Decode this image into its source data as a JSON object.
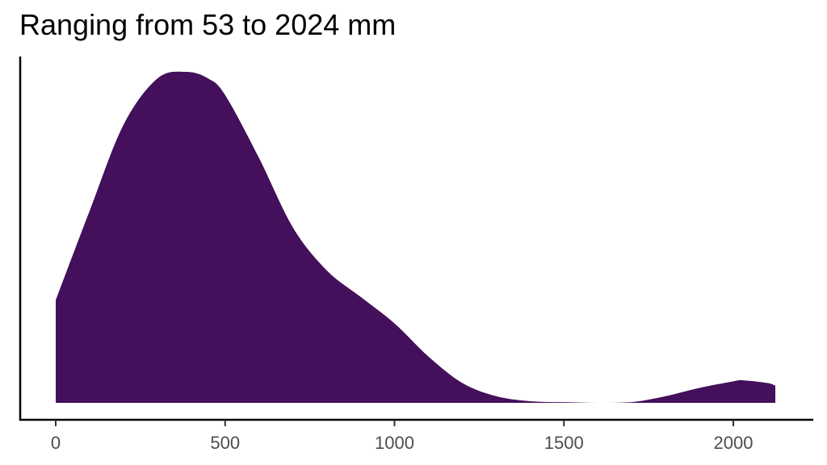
{
  "chart_data": {
    "type": "area",
    "subtype": "density",
    "title": "Ranging from 53 to 2024 mm",
    "xlabel": "",
    "ylabel": "",
    "xlim": [
      -110,
      2250
    ],
    "x_ticks": [
      0,
      500,
      1000,
      1500,
      2000
    ],
    "x_tick_labels": [
      "0",
      "500",
      "1000",
      "1500",
      "2000"
    ],
    "y_ticks": [],
    "grid": false,
    "legend": null,
    "fill_color": "#440F5B",
    "x": [
      0,
      100,
      200,
      300,
      385,
      450,
      500,
      600,
      700,
      800,
      900,
      1000,
      1100,
      1200,
      1300,
      1400,
      1500,
      1600,
      1700,
      1800,
      1900,
      2000,
      2030,
      2100,
      2124
    ],
    "density_relative": [
      0.31,
      0.58,
      0.84,
      0.98,
      1.0,
      0.98,
      0.93,
      0.74,
      0.53,
      0.4,
      0.32,
      0.24,
      0.14,
      0.06,
      0.02,
      0.005,
      0.002,
      0.0,
      0.002,
      0.02,
      0.045,
      0.065,
      0.068,
      0.06,
      0.052
    ]
  },
  "title": "Ranging from 53 to 2024 mm"
}
